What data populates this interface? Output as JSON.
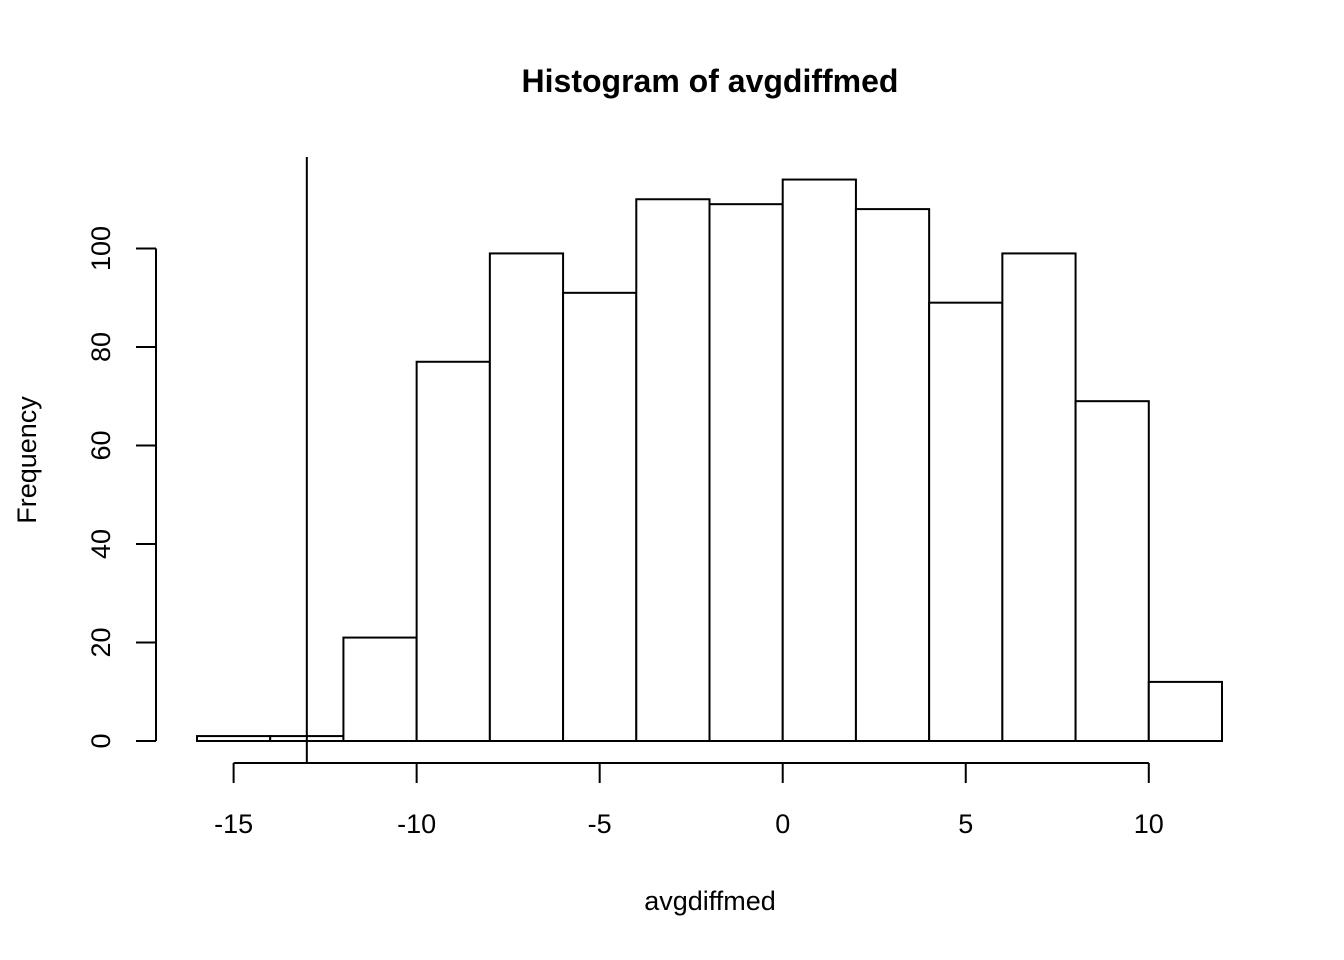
{
  "chart_data": {
    "type": "bar",
    "title": "Histogram of avgdiffmed",
    "xlabel": "avgdiffmed",
    "ylabel": "Frequency",
    "bin_edges": [
      -16,
      -14,
      -12,
      -10,
      -8,
      -6,
      -4,
      -2,
      0,
      2,
      4,
      6,
      8,
      10,
      12
    ],
    "values": [
      1,
      1,
      21,
      77,
      99,
      91,
      110,
      109,
      114,
      108,
      89,
      99,
      69,
      12
    ],
    "xlim": [
      -16,
      12
    ],
    "ylim": [
      0,
      120
    ],
    "x_ticks": [
      -15,
      -10,
      -5,
      0,
      5,
      10
    ],
    "x_tick_labels": [
      "-15",
      "-10",
      "-5",
      "0",
      "5",
      "10"
    ],
    "y_ticks": [
      0,
      20,
      40,
      60,
      80,
      100
    ],
    "y_tick_labels": [
      "0",
      "20",
      "40",
      "60",
      "80",
      "100"
    ],
    "vertical_line_x": -13,
    "bar_fill": "#ffffff",
    "bar_stroke": "#000000",
    "grid": false,
    "legend": "none"
  }
}
